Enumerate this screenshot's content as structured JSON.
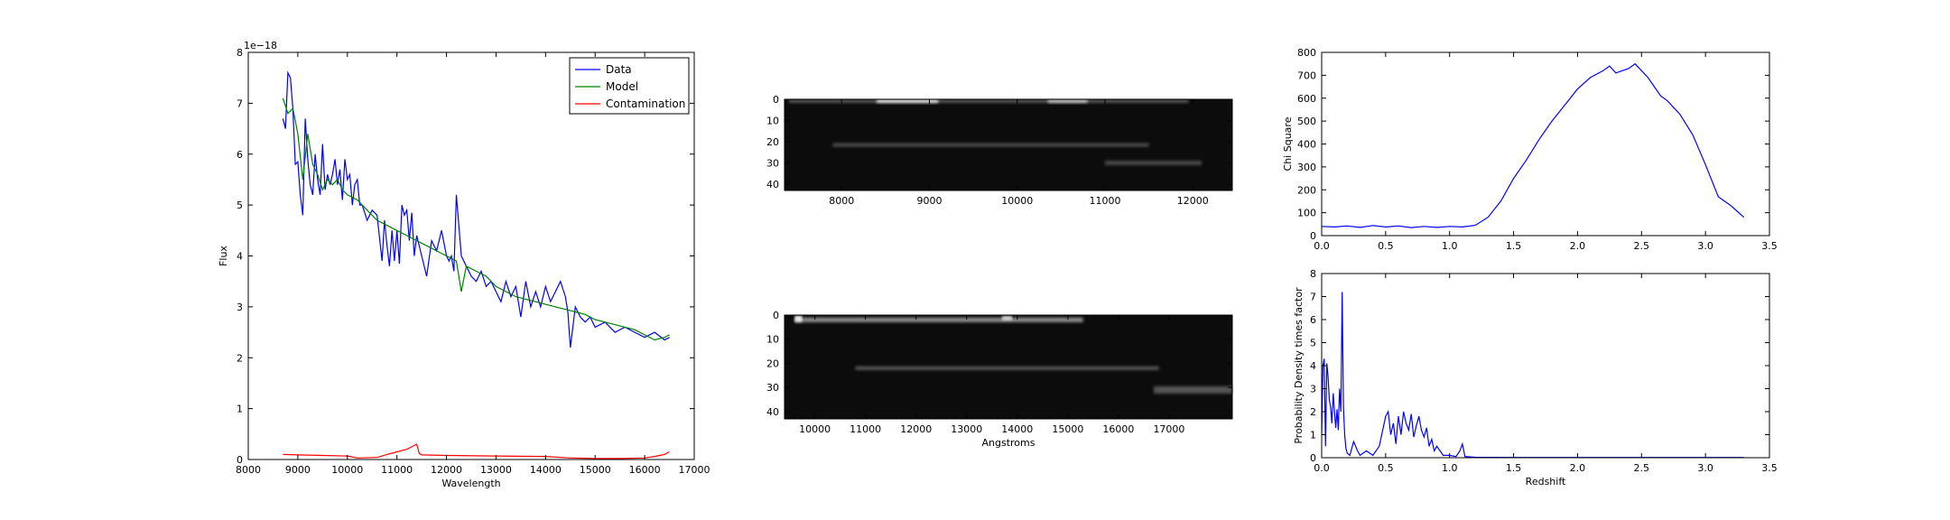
{
  "chart_data": [
    {
      "id": "spectrum",
      "type": "line",
      "xlabel": "Wavelength",
      "ylabel": "Flux",
      "xlim": [
        8000,
        17000
      ],
      "ylim": [
        0,
        8
      ],
      "xticks": [
        8000,
        9000,
        10000,
        11000,
        12000,
        13000,
        14000,
        15000,
        16000,
        17000
      ],
      "yticks": [
        0,
        1,
        2,
        3,
        4,
        5,
        6,
        7,
        8
      ],
      "y_offset_label": "1e−18",
      "legend": {
        "placement": "top-right",
        "entries": [
          "Data",
          "Model",
          "Contamination"
        ]
      },
      "grid": false,
      "series": [
        {
          "name": "Data",
          "color": "#0000ff",
          "x": [
            8700,
            8750,
            8800,
            8850,
            8900,
            8950,
            9000,
            9050,
            9100,
            9150,
            9200,
            9250,
            9300,
            9350,
            9400,
            9450,
            9500,
            9550,
            9600,
            9650,
            9700,
            9750,
            9800,
            9850,
            9900,
            9950,
            10000,
            10050,
            10100,
            10150,
            10200,
            10250,
            10300,
            10400,
            10500,
            10600,
            10700,
            10750,
            10800,
            10850,
            10900,
            10950,
            11000,
            11050,
            11100,
            11150,
            11200,
            11250,
            11300,
            11350,
            11400,
            11500,
            11600,
            11700,
            11800,
            11900,
            12000,
            12050,
            12100,
            12150,
            12200,
            12300,
            12400,
            12500,
            12600,
            12700,
            12800,
            12900,
            13000,
            13100,
            13200,
            13300,
            13400,
            13500,
            13600,
            13700,
            13800,
            13900,
            14000,
            14100,
            14200,
            14300,
            14400,
            14450,
            14500,
            14600,
            14700,
            14800,
            14900,
            15000,
            15200,
            15400,
            15600,
            15800,
            16000,
            16200,
            16400,
            16500
          ],
          "y": [
            6.7,
            6.5,
            7.6,
            7.5,
            6.9,
            5.8,
            5.85,
            5.2,
            4.8,
            6.7,
            5.9,
            5.4,
            5.2,
            6.0,
            5.5,
            5.2,
            6.2,
            5.3,
            5.6,
            5.4,
            5.6,
            5.9,
            5.4,
            5.7,
            5.1,
            5.9,
            5.5,
            5.6,
            5.0,
            5.4,
            5.5,
            5.0,
            5.0,
            4.7,
            4.9,
            4.8,
            3.9,
            4.7,
            4.2,
            3.8,
            4.5,
            3.9,
            4.5,
            3.85,
            5.0,
            4.8,
            4.9,
            4.3,
            4.85,
            4.0,
            4.4,
            4.0,
            3.6,
            4.3,
            4.1,
            4.5,
            4.0,
            3.9,
            4.0,
            3.7,
            5.2,
            4.0,
            3.8,
            3.6,
            3.5,
            3.7,
            3.4,
            3.5,
            3.3,
            3.1,
            3.5,
            3.2,
            3.4,
            2.8,
            3.5,
            3.0,
            3.3,
            3.0,
            3.4,
            3.1,
            3.3,
            3.5,
            3.2,
            2.9,
            2.2,
            3.0,
            2.8,
            2.7,
            2.8,
            2.6,
            2.7,
            2.5,
            2.6,
            2.5,
            2.4,
            2.5,
            2.35,
            2.4
          ]
        },
        {
          "name": "Model",
          "color": "#008000",
          "x": [
            8700,
            8800,
            8900,
            9000,
            9100,
            9200,
            9300,
            9400,
            9500,
            9600,
            9700,
            9800,
            9900,
            10000,
            10200,
            10400,
            10600,
            10800,
            11000,
            11200,
            11400,
            11600,
            11800,
            12000,
            12200,
            12300,
            12400,
            12600,
            12800,
            13000,
            13200,
            13400,
            13600,
            13800,
            14000,
            14200,
            14400,
            14600,
            14800,
            15000,
            15200,
            15400,
            15600,
            15800,
            16000,
            16200,
            16400,
            16500
          ],
          "y": [
            7.1,
            6.8,
            6.9,
            6.4,
            5.5,
            6.4,
            5.8,
            5.6,
            5.3,
            5.5,
            5.4,
            5.5,
            5.3,
            5.2,
            5.1,
            4.9,
            4.7,
            4.6,
            4.5,
            4.4,
            4.3,
            4.2,
            4.1,
            4.0,
            3.9,
            3.3,
            3.8,
            3.7,
            3.6,
            3.4,
            3.3,
            3.2,
            3.15,
            3.1,
            3.05,
            3.0,
            2.95,
            2.9,
            2.85,
            2.75,
            2.7,
            2.65,
            2.6,
            2.55,
            2.45,
            2.35,
            2.4,
            2.45
          ]
        },
        {
          "name": "Contamination",
          "color": "#ff0000",
          "x": [
            8700,
            9000,
            9500,
            10000,
            10200,
            10600,
            10800,
            11000,
            11200,
            11300,
            11400,
            11450,
            11500,
            12000,
            13000,
            14000,
            14500,
            15000,
            15500,
            16000,
            16200,
            16400,
            16500
          ],
          "y": [
            0.1,
            0.09,
            0.08,
            0.07,
            0.03,
            0.04,
            0.1,
            0.15,
            0.2,
            0.25,
            0.3,
            0.12,
            0.09,
            0.08,
            0.07,
            0.06,
            0.03,
            0.02,
            0.02,
            0.03,
            0.06,
            0.1,
            0.15
          ]
        }
      ]
    },
    {
      "id": "image-top",
      "type": "heatmap",
      "xlim": [
        7350,
        12450
      ],
      "ylim": [
        43,
        0
      ],
      "xticks": [
        8000,
        9000,
        10000,
        11000,
        12000
      ],
      "yticks": [
        0,
        10,
        20,
        30,
        40
      ]
    },
    {
      "id": "image-bottom",
      "type": "heatmap",
      "xlabel": "Angstroms",
      "xlim": [
        9400,
        18250
      ],
      "ylim": [
        43,
        0
      ],
      "xticks": [
        10000,
        11000,
        12000,
        13000,
        14000,
        15000,
        16000,
        17000
      ],
      "yticks": [
        0,
        10,
        20,
        30,
        40
      ]
    },
    {
      "id": "chisq",
      "type": "line",
      "ylabel": "Chi Square",
      "xlim": [
        0,
        3.5
      ],
      "ylim": [
        0,
        800
      ],
      "xticks": [
        "0.0",
        "0.5",
        "1.0",
        "1.5",
        "2.0",
        "2.5",
        "3.0",
        "3.5"
      ],
      "yticks": [
        0,
        100,
        200,
        300,
        400,
        500,
        600,
        700,
        800
      ],
      "grid": false,
      "series": [
        {
          "color": "#0000ff",
          "x": [
            0,
            0.1,
            0.2,
            0.3,
            0.4,
            0.5,
            0.6,
            0.7,
            0.8,
            0.9,
            1.0,
            1.1,
            1.2,
            1.3,
            1.4,
            1.5,
            1.6,
            1.7,
            1.8,
            1.9,
            2.0,
            2.1,
            2.2,
            2.25,
            2.3,
            2.35,
            2.4,
            2.45,
            2.5,
            2.55,
            2.6,
            2.65,
            2.7,
            2.8,
            2.9,
            3.0,
            3.1,
            3.2,
            3.3
          ],
          "y": [
            40,
            38,
            42,
            36,
            44,
            38,
            42,
            35,
            40,
            36,
            40,
            38,
            45,
            80,
            150,
            250,
            330,
            420,
            500,
            570,
            640,
            690,
            720,
            740,
            710,
            720,
            730,
            750,
            720,
            690,
            650,
            610,
            590,
            530,
            440,
            310,
            170,
            130,
            80
          ]
        }
      ]
    },
    {
      "id": "pdf",
      "type": "line",
      "xlabel": "Redshift",
      "ylabel": "Probability Density times factor",
      "xlim": [
        0,
        3.5
      ],
      "ylim": [
        0,
        8
      ],
      "xticks": [
        "0.0",
        "0.5",
        "1.0",
        "1.5",
        "2.0",
        "2.5",
        "3.0",
        "3.5"
      ],
      "yticks": [
        0,
        1,
        2,
        3,
        4,
        5,
        6,
        7,
        8
      ],
      "grid": false,
      "series": [
        {
          "color": "#0000ff",
          "x": [
            0,
            0.01,
            0.02,
            0.03,
            0.04,
            0.05,
            0.06,
            0.07,
            0.08,
            0.09,
            0.1,
            0.11,
            0.12,
            0.13,
            0.14,
            0.15,
            0.16,
            0.17,
            0.18,
            0.19,
            0.2,
            0.22,
            0.25,
            0.28,
            0.3,
            0.35,
            0.4,
            0.45,
            0.5,
            0.52,
            0.54,
            0.56,
            0.58,
            0.6,
            0.62,
            0.64,
            0.66,
            0.68,
            0.7,
            0.72,
            0.74,
            0.76,
            0.78,
            0.8,
            0.82,
            0.84,
            0.86,
            0.88,
            0.9,
            0.95,
            1.0,
            1.05,
            1.08,
            1.1,
            1.12,
            1.2,
            1.5,
            2.0,
            2.5,
            3.0,
            3.3
          ],
          "y": [
            1,
            4,
            4.3,
            0.5,
            4.1,
            3.5,
            2.5,
            2.2,
            1.5,
            2.8,
            2.0,
            1.3,
            2.1,
            1.2,
            3.0,
            2.0,
            7.2,
            2.2,
            1.0,
            0.4,
            0.2,
            0.1,
            0.7,
            0.3,
            0.1,
            0.3,
            0.1,
            0.5,
            1.8,
            2.0,
            1.0,
            1.5,
            0.6,
            1.8,
            1.0,
            2.0,
            1.5,
            1.2,
            1.9,
            0.9,
            1.4,
            1.8,
            1.2,
            0.9,
            1.3,
            0.5,
            0.8,
            0.3,
            0.5,
            0.1,
            0.1,
            0.05,
            0.3,
            0.6,
            0.05,
            0.02,
            0.01,
            0.01,
            0.01,
            0.01,
            0.01
          ]
        }
      ]
    }
  ]
}
